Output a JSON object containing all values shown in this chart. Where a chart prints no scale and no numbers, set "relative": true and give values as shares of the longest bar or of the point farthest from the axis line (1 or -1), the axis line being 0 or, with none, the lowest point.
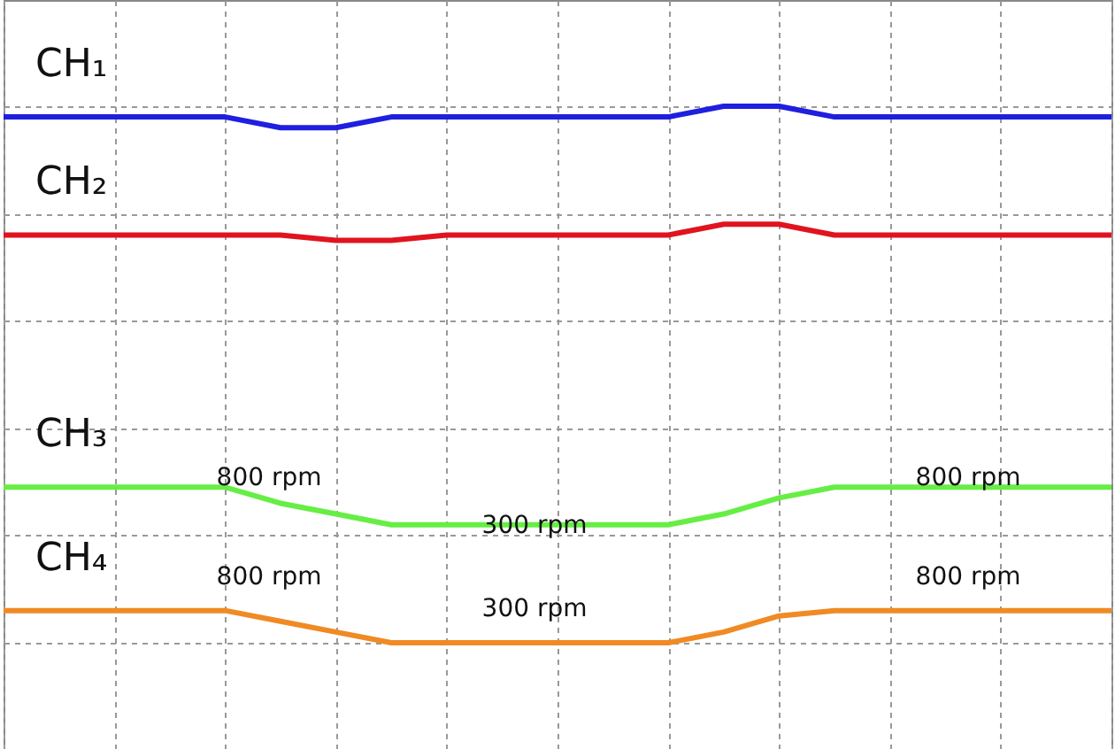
{
  "chart_data": {
    "type": "line",
    "relative": true,
    "grid": true,
    "legend": false,
    "marker": "none",
    "line_style": "solid",
    "categories": [
      null,
      null,
      null,
      null,
      null,
      null,
      null,
      null,
      null,
      null,
      null,
      null,
      null,
      null,
      null,
      null,
      null,
      null,
      null,
      null,
      null
    ],
    "series": [
      {
        "name": "CH₁",
        "color": "#1f1fe0",
        "values": [
          0.98,
          0.98,
          0.98,
          0.98,
          0.98,
          0.96,
          0.96,
          0.98,
          0.98,
          0.98,
          0.98,
          0.98,
          0.98,
          1.0,
          1.0,
          0.98,
          0.98,
          0.98,
          0.98,
          0.98,
          0.98
        ]
      },
      {
        "name": "CH₂",
        "color": "#e0141e",
        "values": [
          0.76,
          0.76,
          0.76,
          0.76,
          0.76,
          0.76,
          0.75,
          0.75,
          0.76,
          0.76,
          0.76,
          0.76,
          0.76,
          0.78,
          0.78,
          0.76,
          0.76,
          0.76,
          0.76,
          0.76,
          0.76
        ]
      },
      {
        "name": "CH₃",
        "color": "#66ee44",
        "values": [
          0.29,
          0.29,
          0.29,
          0.29,
          0.29,
          0.26,
          0.24,
          0.22,
          0.22,
          0.22,
          0.22,
          0.22,
          0.22,
          0.24,
          0.27,
          0.29,
          0.29,
          0.29,
          0.29,
          0.29,
          0.29
        ]
      },
      {
        "name": "CH₄",
        "color": "#f08a24",
        "values": [
          0.06,
          0.06,
          0.06,
          0.06,
          0.06,
          0.04,
          0.02,
          0.0,
          0.0,
          0.0,
          0.0,
          0.0,
          0.0,
          0.02,
          0.05,
          0.06,
          0.06,
          0.06,
          0.06,
          0.06,
          0.06
        ]
      }
    ],
    "annotations": [
      "800 rpm",
      "300 rpm",
      "800 rpm",
      "800 rpm",
      "300 rpm",
      "800 rpm"
    ]
  }
}
